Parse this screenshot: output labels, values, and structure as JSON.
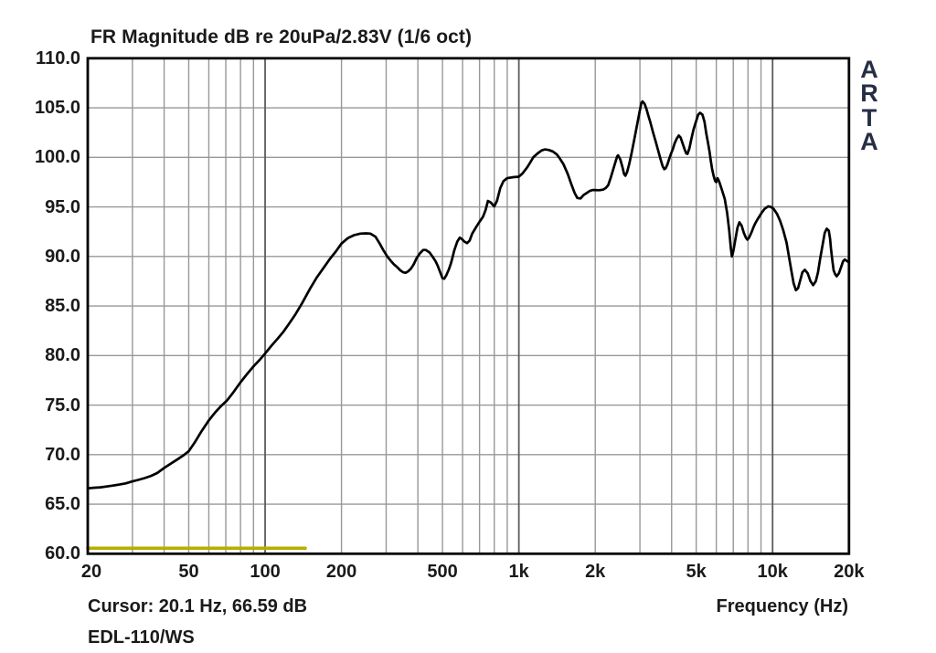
{
  "title": "FR Magnitude dB re 20uPa/2.83V (1/6 oct)",
  "watermark": {
    "text": "ARTA"
  },
  "status_line": "Cursor: 20.1 Hz, 66.59 dB",
  "footer": "EDL-110/WS",
  "colors": {
    "background": "#ffffff",
    "text": "#1a1a1a",
    "watermark_text": "#252e44",
    "grid_minor": "#989898",
    "grid_major": "#5c5c5c",
    "frame": "#000000",
    "curve": "#000000",
    "marker_line": "#b6ae00"
  },
  "chart_data": {
    "type": "line",
    "title": "FR Magnitude dB re 20uPa/2.83V (1/6 oct)",
    "xlabel": "Frequency (Hz)",
    "ylabel": "",
    "x_scale": "log",
    "xlim": [
      20,
      20000
    ],
    "ylim": [
      60,
      110
    ],
    "grid": true,
    "legend": "none",
    "x_ticks": [
      {
        "value": 20,
        "label": "20"
      },
      {
        "value": 50,
        "label": "50"
      },
      {
        "value": 100,
        "label": "100"
      },
      {
        "value": 200,
        "label": "200"
      },
      {
        "value": 500,
        "label": "500"
      },
      {
        "value": 1000,
        "label": "1k"
      },
      {
        "value": 2000,
        "label": "2k"
      },
      {
        "value": 5000,
        "label": "5k"
      },
      {
        "value": 10000,
        "label": "10k"
      },
      {
        "value": 20000,
        "label": "20k"
      }
    ],
    "y_ticks": [
      {
        "value": 110,
        "label": "110.0"
      },
      {
        "value": 105,
        "label": "105.0"
      },
      {
        "value": 100,
        "label": "100.0"
      },
      {
        "value": 95,
        "label": "95.0"
      },
      {
        "value": 90,
        "label": "90.0"
      },
      {
        "value": 85,
        "label": "85.0"
      },
      {
        "value": 80,
        "label": "80.0"
      },
      {
        "value": 75,
        "label": "75.0"
      },
      {
        "value": 70,
        "label": "70.0"
      },
      {
        "value": 65,
        "label": "65.0"
      },
      {
        "value": 60,
        "label": "60.0"
      }
    ],
    "x_grid_minor": [
      30,
      40,
      50,
      60,
      70,
      80,
      90,
      200,
      300,
      400,
      500,
      600,
      700,
      800,
      900,
      2000,
      3000,
      4000,
      5000,
      6000,
      7000,
      8000,
      9000
    ],
    "x_grid_major": [
      100,
      1000,
      10000
    ],
    "y_grid": [
      65,
      70,
      75,
      80,
      85,
      90,
      95,
      100,
      105
    ],
    "series": [
      {
        "name": "frequency-response",
        "color": "#000000",
        "width": 2.7,
        "points": [
          [
            20,
            66.6
          ],
          [
            21,
            66.65
          ],
          [
            22.4,
            66.7
          ],
          [
            23.7,
            66.78
          ],
          [
            25.1,
            66.88
          ],
          [
            26.6,
            66.98
          ],
          [
            28.2,
            67.1
          ],
          [
            30,
            67.3
          ],
          [
            31.6,
            67.45
          ],
          [
            33.5,
            67.63
          ],
          [
            35.5,
            67.85
          ],
          [
            37.6,
            68.15
          ],
          [
            40,
            68.65
          ],
          [
            42.5,
            69.1
          ],
          [
            45,
            69.5
          ],
          [
            47.5,
            69.9
          ],
          [
            50,
            70.35
          ],
          [
            53,
            71.3
          ],
          [
            56,
            72.3
          ],
          [
            60,
            73.45
          ],
          [
            63.5,
            74.25
          ],
          [
            67,
            74.9
          ],
          [
            71,
            75.5
          ],
          [
            75,
            76.3
          ],
          [
            80,
            77.3
          ],
          [
            85,
            78.15
          ],
          [
            90,
            78.9
          ],
          [
            95,
            79.55
          ],
          [
            100,
            80.2
          ],
          [
            106,
            81.0
          ],
          [
            112,
            81.7
          ],
          [
            118,
            82.4
          ],
          [
            125,
            83.3
          ],
          [
            132,
            84.2
          ],
          [
            140,
            85.3
          ],
          [
            150,
            86.7
          ],
          [
            160,
            87.9
          ],
          [
            170,
            88.85
          ],
          [
            180,
            89.75
          ],
          [
            190,
            90.5
          ],
          [
            200,
            91.3
          ],
          [
            212,
            91.85
          ],
          [
            224,
            92.15
          ],
          [
            237,
            92.3
          ],
          [
            250,
            92.33
          ],
          [
            260,
            92.3
          ],
          [
            272,
            92.0
          ],
          [
            283,
            91.3
          ],
          [
            293,
            90.6
          ],
          [
            303,
            90.0
          ],
          [
            313,
            89.55
          ],
          [
            322,
            89.2
          ],
          [
            332,
            88.9
          ],
          [
            341,
            88.6
          ],
          [
            350,
            88.4
          ],
          [
            358,
            88.35
          ],
          [
            366,
            88.5
          ],
          [
            375,
            88.75
          ],
          [
            385,
            89.2
          ],
          [
            395,
            89.8
          ],
          [
            407,
            90.3
          ],
          [
            420,
            90.65
          ],
          [
            430,
            90.65
          ],
          [
            445,
            90.4
          ],
          [
            459,
            89.9
          ],
          [
            470,
            89.5
          ],
          [
            480,
            89.0
          ],
          [
            490,
            88.4
          ],
          [
            500,
            87.8
          ],
          [
            508,
            87.75
          ],
          [
            518,
            88.1
          ],
          [
            530,
            88.7
          ],
          [
            540,
            89.3
          ],
          [
            548,
            89.9
          ],
          [
            555,
            90.5
          ],
          [
            562,
            90.95
          ],
          [
            572,
            91.5
          ],
          [
            585,
            91.9
          ],
          [
            597,
            91.75
          ],
          [
            610,
            91.5
          ],
          [
            625,
            91.35
          ],
          [
            640,
            91.6
          ],
          [
            655,
            92.3
          ],
          [
            680,
            93.0
          ],
          [
            700,
            93.5
          ],
          [
            722,
            94.0
          ],
          [
            740,
            94.7
          ],
          [
            755,
            95.6
          ],
          [
            775,
            95.45
          ],
          [
            800,
            95.05
          ],
          [
            820,
            95.6
          ],
          [
            845,
            96.9
          ],
          [
            870,
            97.6
          ],
          [
            900,
            97.9
          ],
          [
            950,
            98.0
          ],
          [
            1000,
            98.05
          ],
          [
            1035,
            98.4
          ],
          [
            1080,
            99.0
          ],
          [
            1110,
            99.5
          ],
          [
            1140,
            100.0
          ],
          [
            1185,
            100.4
          ],
          [
            1230,
            100.7
          ],
          [
            1265,
            100.8
          ],
          [
            1310,
            100.75
          ],
          [
            1360,
            100.6
          ],
          [
            1410,
            100.3
          ],
          [
            1440,
            100.0
          ],
          [
            1500,
            99.3
          ],
          [
            1560,
            98.3
          ],
          [
            1610,
            97.3
          ],
          [
            1660,
            96.4
          ],
          [
            1700,
            95.9
          ],
          [
            1750,
            95.85
          ],
          [
            1800,
            96.2
          ],
          [
            1850,
            96.4
          ],
          [
            1900,
            96.6
          ],
          [
            1950,
            96.7
          ],
          [
            2000,
            96.7
          ],
          [
            2050,
            96.68
          ],
          [
            2100,
            96.7
          ],
          [
            2150,
            96.75
          ],
          [
            2200,
            96.9
          ],
          [
            2250,
            97.2
          ],
          [
            2300,
            97.9
          ],
          [
            2350,
            98.7
          ],
          [
            2400,
            99.5
          ],
          [
            2440,
            100.1
          ],
          [
            2460,
            100.2
          ],
          [
            2510,
            99.8
          ],
          [
            2560,
            99.0
          ],
          [
            2600,
            98.3
          ],
          [
            2630,
            98.15
          ],
          [
            2670,
            98.5
          ],
          [
            2720,
            99.3
          ],
          [
            2780,
            100.4
          ],
          [
            2850,
            101.8
          ],
          [
            2920,
            103.2
          ],
          [
            2990,
            104.6
          ],
          [
            3040,
            105.5
          ],
          [
            3070,
            105.65
          ],
          [
            3130,
            105.4
          ],
          [
            3190,
            104.8
          ],
          [
            3230,
            104.3
          ],
          [
            3300,
            103.5
          ],
          [
            3380,
            102.5
          ],
          [
            3460,
            101.6
          ],
          [
            3540,
            100.7
          ],
          [
            3620,
            99.8
          ],
          [
            3690,
            99.1
          ],
          [
            3740,
            98.8
          ],
          [
            3790,
            98.9
          ],
          [
            3850,
            99.3
          ],
          [
            3920,
            99.9
          ],
          [
            3980,
            100.4
          ],
          [
            4040,
            100.8
          ],
          [
            4110,
            101.4
          ],
          [
            4190,
            101.9
          ],
          [
            4270,
            102.2
          ],
          [
            4340,
            102.0
          ],
          [
            4420,
            101.4
          ],
          [
            4500,
            100.8
          ],
          [
            4570,
            100.4
          ],
          [
            4620,
            100.35
          ],
          [
            4700,
            100.9
          ],
          [
            4780,
            101.8
          ],
          [
            4880,
            102.8
          ],
          [
            4990,
            103.6
          ],
          [
            5090,
            104.3
          ],
          [
            5180,
            104.5
          ],
          [
            5290,
            104.3
          ],
          [
            5390,
            103.6
          ],
          [
            5480,
            102.4
          ],
          [
            5560,
            101.5
          ],
          [
            5640,
            100.6
          ],
          [
            5710,
            99.6
          ],
          [
            5780,
            98.8
          ],
          [
            5860,
            98.1
          ],
          [
            5940,
            97.6
          ],
          [
            6000,
            97.5
          ],
          [
            6070,
            97.9
          ],
          [
            6150,
            97.6
          ],
          [
            6300,
            96.8
          ],
          [
            6480,
            95.8
          ],
          [
            6620,
            94.4
          ],
          [
            6750,
            92.6
          ],
          [
            6850,
            90.8
          ],
          [
            6910,
            90.0
          ],
          [
            7000,
            90.5
          ],
          [
            7120,
            91.6
          ],
          [
            7270,
            92.9
          ],
          [
            7400,
            93.45
          ],
          [
            7550,
            93.1
          ],
          [
            7700,
            92.4
          ],
          [
            7850,
            91.9
          ],
          [
            7960,
            91.7
          ],
          [
            8080,
            91.9
          ],
          [
            8250,
            92.4
          ],
          [
            8420,
            93.0
          ],
          [
            8550,
            93.35
          ],
          [
            8750,
            93.8
          ],
          [
            9050,
            94.4
          ],
          [
            9300,
            94.8
          ],
          [
            9600,
            95.05
          ],
          [
            9850,
            95.0
          ],
          [
            10100,
            94.8
          ],
          [
            10400,
            94.3
          ],
          [
            10700,
            93.6
          ],
          [
            11000,
            92.7
          ],
          [
            11350,
            91.4
          ],
          [
            11600,
            90.0
          ],
          [
            11850,
            88.6
          ],
          [
            12100,
            87.3
          ],
          [
            12350,
            86.6
          ],
          [
            12600,
            86.8
          ],
          [
            12850,
            87.6
          ],
          [
            13100,
            88.4
          ],
          [
            13400,
            88.65
          ],
          [
            13750,
            88.3
          ],
          [
            14100,
            87.5
          ],
          [
            14450,
            87.1
          ],
          [
            14800,
            87.5
          ],
          [
            15100,
            88.4
          ],
          [
            15400,
            89.8
          ],
          [
            15750,
            91.2
          ],
          [
            16050,
            92.4
          ],
          [
            16350,
            92.8
          ],
          [
            16650,
            92.6
          ],
          [
            16850,
            91.8
          ],
          [
            17000,
            90.7
          ],
          [
            17200,
            89.6
          ],
          [
            17400,
            88.6
          ],
          [
            17650,
            88.2
          ],
          [
            17900,
            88.0
          ],
          [
            18250,
            88.3
          ],
          [
            18600,
            88.9
          ],
          [
            18950,
            89.5
          ],
          [
            19250,
            89.7
          ],
          [
            19600,
            89.55
          ],
          [
            20000,
            89.4
          ]
        ]
      },
      {
        "name": "cursor-marker-line",
        "color": "#b6ae00",
        "width": 3.6,
        "points": [
          [
            20,
            60.55
          ],
          [
            144,
            60.55
          ]
        ]
      }
    ]
  }
}
